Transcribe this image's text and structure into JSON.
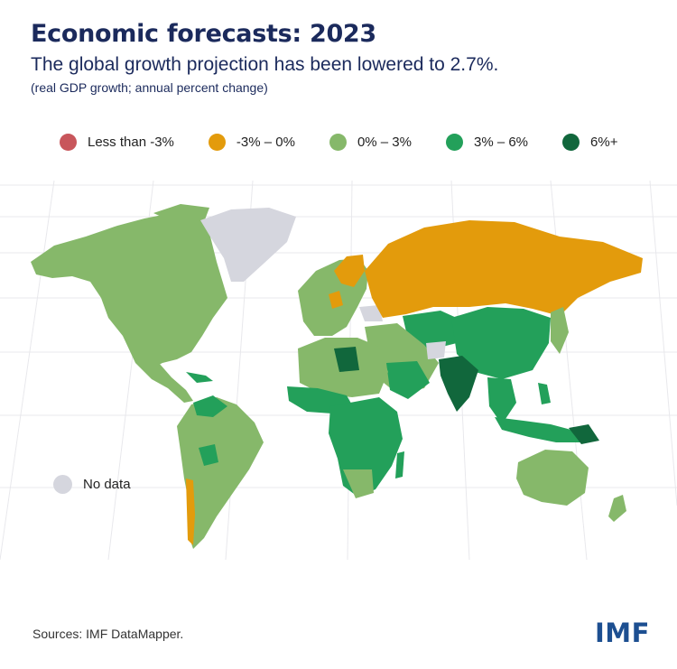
{
  "header": {
    "title": "Economic forecasts: 2023",
    "subtitle": "The global growth projection has been lowered to 2.7%.",
    "note": "(real GDP growth; annual percent change)"
  },
  "legend": [
    {
      "label": "Less than -3%",
      "color": "#c8565b"
    },
    {
      "label": "-3% – 0%",
      "color": "#e39b0c"
    },
    {
      "label": "0% – 3%",
      "color": "#86b86a"
    },
    {
      "label": "3% – 6%",
      "color": "#23a05a"
    },
    {
      "label": "6%+",
      "color": "#11673c"
    }
  ],
  "no_data": {
    "label": "No data",
    "color": "#d5d6de"
  },
  "footer": {
    "source": "Sources: IMF DataMapper.",
    "logo": "IMF"
  }
}
